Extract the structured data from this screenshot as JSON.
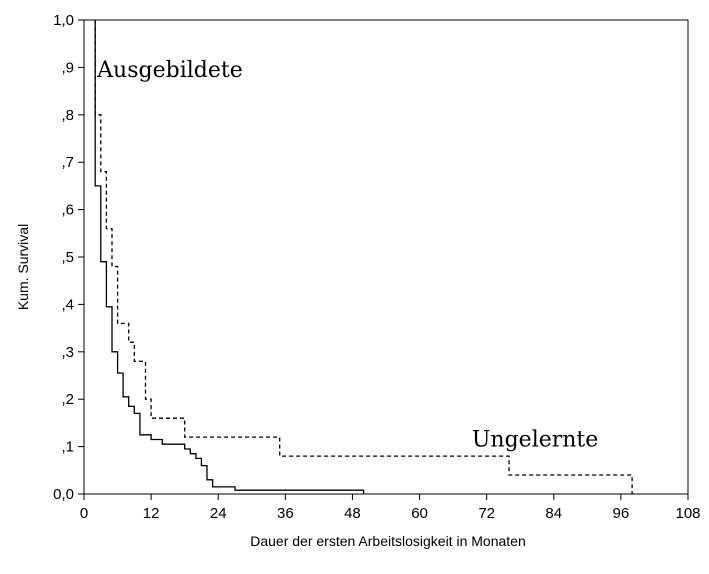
{
  "chart_data": {
    "type": "line",
    "step": true,
    "xlabel": "Dauer der ersten Arbeitslosigkeit in Monaten",
    "ylabel": "Kum. Survival",
    "xlim": [
      0,
      108
    ],
    "ylim": [
      0,
      1
    ],
    "x_ticks": [
      0,
      12,
      24,
      36,
      48,
      60,
      72,
      84,
      96,
      108
    ],
    "x_tick_labels": [
      "0",
      "12",
      "24",
      "36",
      "48",
      "60",
      "72",
      "84",
      "96",
      "108"
    ],
    "y_ticks": [
      0,
      0.1,
      0.2,
      0.3,
      0.4,
      0.5,
      0.6,
      0.7,
      0.8,
      0.9,
      1.0
    ],
    "y_tick_labels": [
      "0,0",
      ",1",
      ",2",
      ",3",
      ",4",
      ",5",
      ",6",
      ",7",
      ",8",
      ",9",
      "1,0"
    ],
    "grid": false,
    "legend": "none",
    "series": [
      {
        "name": "Ausgebildete",
        "line_style": "solid",
        "x": [
          2,
          2,
          3,
          3,
          4,
          4,
          5,
          5,
          6,
          6,
          7,
          7,
          8,
          8,
          9,
          9,
          10,
          10,
          12,
          12,
          14,
          14,
          18,
          18,
          19,
          19,
          20,
          20,
          21,
          21,
          22,
          22,
          23,
          23,
          27,
          27,
          50,
          50
        ],
        "y": [
          1.0,
          0.65,
          0.65,
          0.49,
          0.49,
          0.395,
          0.395,
          0.3,
          0.3,
          0.255,
          0.255,
          0.205,
          0.205,
          0.185,
          0.185,
          0.17,
          0.17,
          0.125,
          0.125,
          0.115,
          0.115,
          0.105,
          0.105,
          0.095,
          0.095,
          0.085,
          0.085,
          0.075,
          0.075,
          0.06,
          0.06,
          0.03,
          0.03,
          0.015,
          0.015,
          0.008,
          0.008,
          0.0
        ]
      },
      {
        "name": "Ungelernte",
        "line_style": "dashed",
        "x": [
          2,
          2,
          3,
          3,
          4,
          4,
          5,
          5,
          6,
          6,
          8,
          8,
          9,
          9,
          11,
          11,
          12,
          12,
          14,
          14,
          18,
          18,
          35,
          35,
          76,
          76,
          98,
          98
        ],
        "y": [
          1.0,
          0.8,
          0.8,
          0.68,
          0.68,
          0.56,
          0.56,
          0.48,
          0.48,
          0.36,
          0.36,
          0.32,
          0.32,
          0.28,
          0.28,
          0.2,
          0.2,
          0.16,
          0.16,
          0.16,
          0.16,
          0.12,
          0.12,
          0.08,
          0.08,
          0.04,
          0.04,
          0.0
        ]
      }
    ],
    "annotations": [
      {
        "text": "Ausgebildete",
        "series": "Ausgebildete",
        "x": 2,
        "y": 0.88
      },
      {
        "text": "Ungelernte",
        "series": "Ungelernte",
        "x": 69,
        "y": 0.1
      }
    ]
  }
}
